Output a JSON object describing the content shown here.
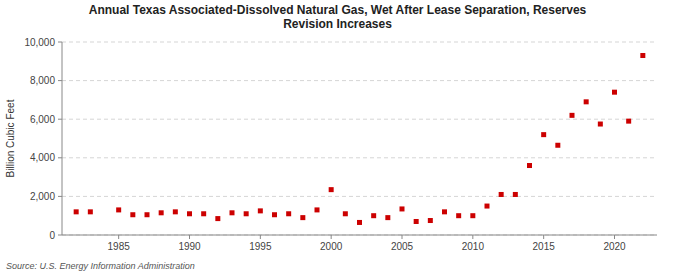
{
  "chart_data": {
    "type": "scatter",
    "title": "Annual Texas Associated-Dissolved Natural Gas, Wet After Lease Separation, Reserves\nRevision Increases",
    "ylabel": "Billion Cubic Feet",
    "source": "Source: U.S. Energy Information Administration",
    "color": "#cc0000",
    "marker": "square",
    "grid": "y",
    "x": [
      1982,
      1983,
      1985,
      1986,
      1987,
      1988,
      1989,
      1990,
      1991,
      1992,
      1993,
      1994,
      1995,
      1996,
      1997,
      1998,
      1999,
      2000,
      2001,
      2002,
      2003,
      2004,
      2005,
      2006,
      2007,
      2008,
      2009,
      2010,
      2011,
      2012,
      2013,
      2014,
      2015,
      2016,
      2017,
      2018,
      2019,
      2020,
      2021,
      2022
    ],
    "values": [
      1200,
      1200,
      1300,
      1050,
      1050,
      1150,
      1200,
      1100,
      1100,
      850,
      1150,
      1100,
      1250,
      1050,
      1100,
      900,
      1300,
      2350,
      1100,
      650,
      1000,
      900,
      1350,
      700,
      750,
      1200,
      1000,
      1000,
      1500,
      2100,
      2100,
      3600,
      5200,
      4650,
      6200,
      6900,
      5750,
      7400,
      5900,
      9300
    ],
    "xlim": [
      1981,
      2023
    ],
    "xticks": [
      1985,
      1990,
      1995,
      2000,
      2005,
      2010,
      2015,
      2020
    ],
    "ylim": [
      0,
      10000
    ],
    "yticks": [
      0,
      {
        "value": 2000,
        "label": "2,000"
      },
      {
        "value": 4000,
        "label": "4,000"
      },
      {
        "value": 6000,
        "label": "6,000"
      },
      {
        "value": 8000,
        "label": "8,000"
      },
      {
        "value": 10000,
        "label": "10,000"
      }
    ]
  }
}
